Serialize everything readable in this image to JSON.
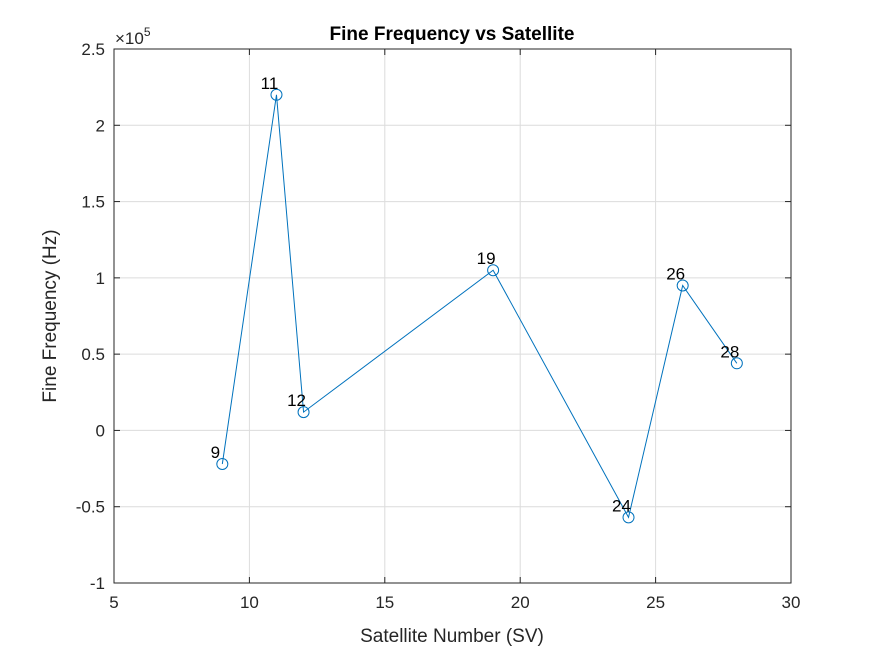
{
  "chart_data": {
    "type": "line",
    "title": "Fine Frequency vs Satellite",
    "xlabel": "Satellite Number (SV)",
    "ylabel": "Fine Frequency (Hz)",
    "y_exponent_label": "×10",
    "y_exponent_power": "5",
    "xlim": [
      5,
      30
    ],
    "ylim": [
      -1,
      2.5
    ],
    "y_scale_factor": 100000,
    "grid": true,
    "x_ticks": [
      5,
      10,
      15,
      20,
      25,
      30
    ],
    "x_tick_labels": [
      "5",
      "10",
      "15",
      "20",
      "25",
      "30"
    ],
    "y_ticks": [
      -1,
      -0.5,
      0,
      0.5,
      1,
      1.5,
      2,
      2.5
    ],
    "y_tick_labels": [
      "-1",
      "-0.5",
      "0",
      "0.5",
      "1",
      "1.5",
      "2",
      "2.5"
    ],
    "color": "#0072bd",
    "series": [
      {
        "x": [
          9,
          11,
          12,
          19,
          24,
          26,
          28
        ],
        "y": [
          -0.22,
          2.2,
          0.12,
          1.05,
          -0.57,
          0.95,
          0.44
        ],
        "point_labels": [
          "9",
          "11",
          "12",
          "19",
          "24",
          "26",
          "28"
        ]
      }
    ]
  }
}
